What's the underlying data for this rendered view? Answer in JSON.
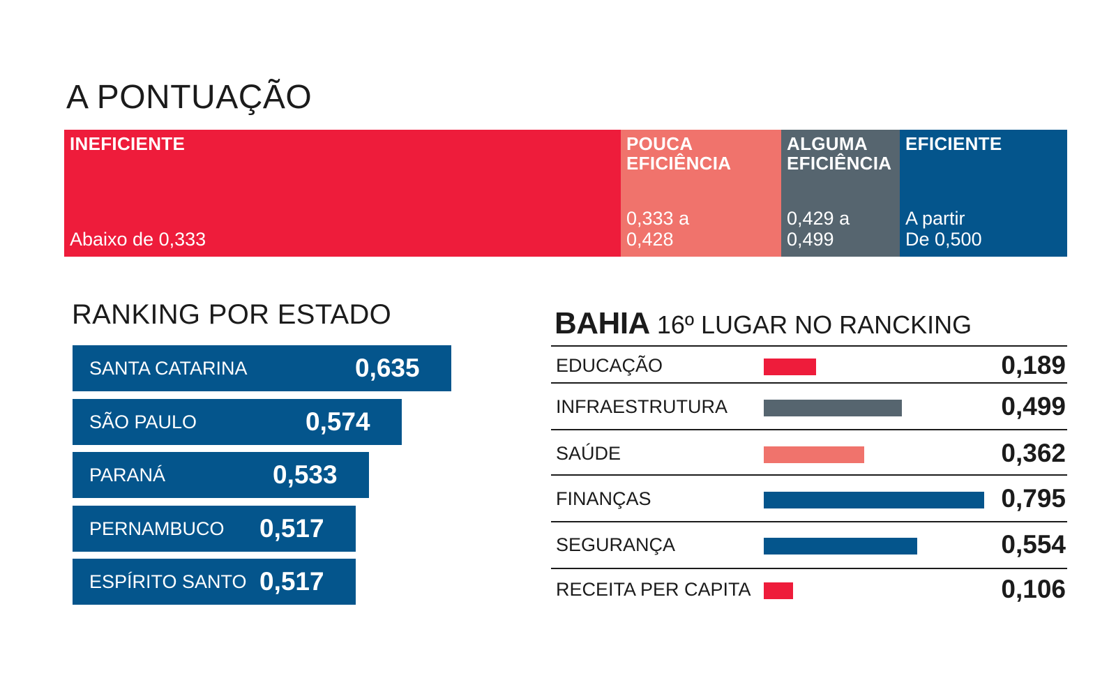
{
  "chart_data": [
    {
      "type": "bar",
      "title": "A PONTUAÇÃO",
      "scale": [
        {
          "label": "INEFICIENTE",
          "range": "Abaixo de 0,333",
          "color": "#ee1c3b"
        },
        {
          "label": "POUCA\nEFICIÊNCIA",
          "range": "0,333 a\n0,428",
          "color": "#f0736c"
        },
        {
          "label": "ALGUMA\nEFICIÊNCIA",
          "range": "0,429 a\n0,499",
          "color": "#56656f"
        },
        {
          "label": "EFICIENTE",
          "range": "A partir\nDe 0,500",
          "color": "#04558c"
        }
      ],
      "breaks": [
        0,
        0.333,
        0.429,
        0.5,
        0.6
      ]
    },
    {
      "type": "bar",
      "title": "RANKING POR ESTADO",
      "categories": [
        "SANTA CATARINA",
        "SÃO PAULO",
        "PARANÁ",
        "PERNAMBUCO",
        "ESPÍRITO SANTO"
      ],
      "values": [
        0.635,
        0.574,
        0.533,
        0.517,
        0.517
      ],
      "labels": [
        "0,635",
        "0,574",
        "0,533",
        "0,517",
        "0,517"
      ],
      "color": "#04558c"
    },
    {
      "type": "bar",
      "title": "BAHIA",
      "subtitle": "16º LUGAR NO RANCKING",
      "categories": [
        "EDUCAÇÃO",
        "INFRAESTRUTURA",
        "SAÚDE",
        "FINANÇAS",
        "SEGURANÇA",
        "RECEITA PER CAPITA"
      ],
      "values": [
        0.189,
        0.499,
        0.362,
        0.795,
        0.554,
        0.106
      ],
      "labels": [
        "0,189",
        "0,499",
        "0,362",
        "0,795",
        "0,554",
        "0,106"
      ],
      "colors": [
        "#ee1c3b",
        "#56656f",
        "#f0736c",
        "#04558c",
        "#04558c",
        "#ee1c3b"
      ],
      "xlim": [
        0,
        0.8
      ]
    }
  ]
}
